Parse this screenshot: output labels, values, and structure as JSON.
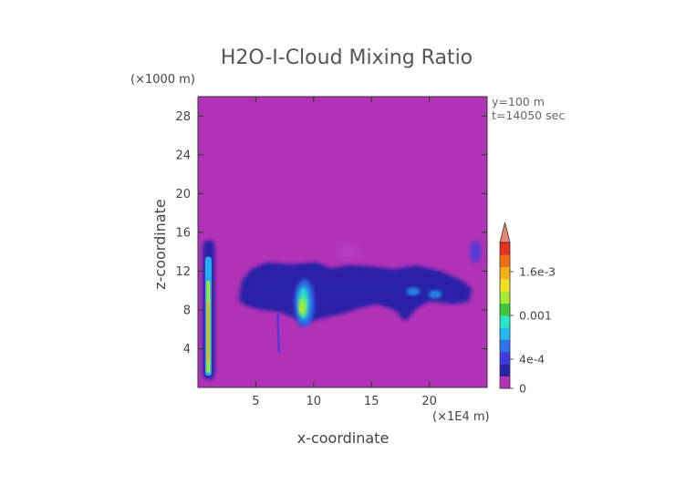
{
  "chart_data": {
    "type": "heatmap",
    "title": "H2O-I-Cloud Mixing Ratio",
    "xlabel": "x-coordinate",
    "ylabel": "z-coordinate",
    "x_unit": "(×1E4 m)",
    "y_unit": "(×1000 m)",
    "annotations": [
      "y=100 m",
      "t=14050 sec"
    ],
    "xlim": [
      0,
      25
    ],
    "ylim": [
      0,
      30
    ],
    "x_ticks": [
      5,
      10,
      15,
      20
    ],
    "y_ticks": [
      4,
      8,
      12,
      16,
      20,
      24,
      28
    ],
    "grid": false,
    "background_value": 0,
    "colorbar": {
      "placement": "right",
      "range": [
        0,
        0.002
      ],
      "tick_values": [
        0,
        0.0004,
        0.001,
        0.0016
      ],
      "tick_labels": [
        "0",
        "4e-4",
        "0.001",
        "1.6e-3"
      ],
      "extend": "max",
      "colors": [
        "#b233b8",
        "#2a22a8",
        "#3c3ce0",
        "#2f74ef",
        "#20b8f0",
        "#28e8c8",
        "#3ac838",
        "#a8e830",
        "#f0e020",
        "#f8b018",
        "#f07010",
        "#e83020"
      ],
      "overflow_color": "#f08078"
    },
    "features": [
      {
        "description_value": "anvil cloud layer",
        "x_range": [
          3.5,
          23.7
        ],
        "z_range": [
          6.6,
          13.0
        ],
        "typical_value": 0.0002,
        "max_value": 0.0003
      },
      {
        "description_value": "core",
        "x": 9.2,
        "z": 8.7,
        "max_value": 0.0012
      },
      {
        "description_value": "narrow column",
        "x": 0.9,
        "z_range": [
          0.8,
          15.2
        ],
        "max_value": 0.0016
      },
      {
        "description_value": "small cell",
        "x": 20.5,
        "z": 9.6,
        "max_value": 0.0006
      },
      {
        "description_value": "small cell",
        "x": 18.6,
        "z": 9.9,
        "max_value": 0.0005
      }
    ]
  }
}
